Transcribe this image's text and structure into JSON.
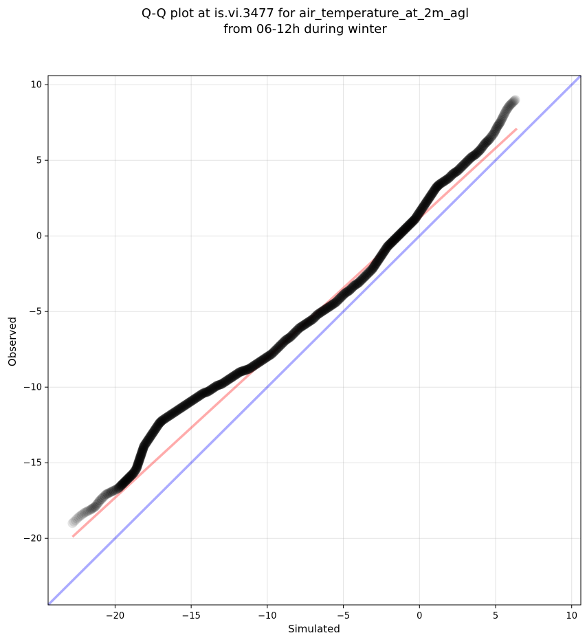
{
  "chart_data": {
    "type": "scatter",
    "title_line1": "Q-Q plot at is.vi.3477 for air_temperature_at_2m_agl",
    "title_line2": "from 06-12h during winter",
    "xlabel": "Simulated",
    "ylabel": "Observed",
    "xlim": [
      -24.4,
      10.6
    ],
    "ylim": [
      -24.4,
      10.6
    ],
    "xticks": [
      -20,
      -15,
      -10,
      -5,
      0,
      5,
      10
    ],
    "yticks": [
      -20,
      -15,
      -10,
      -5,
      0,
      5,
      10
    ],
    "xtick_labels": [
      "−20",
      "−15",
      "−10",
      "−5",
      "0",
      "5",
      "10"
    ],
    "ytick_labels": [
      "−20",
      "−15",
      "−10",
      "−5",
      "0",
      "5",
      "10"
    ],
    "grid": true,
    "fit_line": {
      "color": "#ff0000",
      "x": [
        -22.8,
        6.4
      ],
      "y": [
        -19.9,
        7.1
      ]
    },
    "identity_line": {
      "color": "#0000ff",
      "x": [
        -24.4,
        10.6
      ],
      "y": [
        -24.4,
        10.6
      ]
    },
    "points_color": "#000000",
    "points": {
      "x": [
        -22.8,
        -22.4,
        -22.0,
        -21.6,
        -21.3,
        -21.0,
        -20.6,
        -20.2,
        -19.8,
        -19.6,
        -19.4,
        -19.2,
        -19.0,
        -18.8,
        -18.6,
        -18.5,
        -18.4,
        -18.3,
        -18.2,
        -18.1,
        -17.9,
        -17.7,
        -17.5,
        -17.3,
        -17.1,
        -16.9,
        -16.6,
        -16.3,
        -16.0,
        -15.7,
        -15.4,
        -15.1,
        -14.8,
        -14.5,
        -14.2,
        -13.9,
        -13.6,
        -13.3,
        -13.0,
        -12.7,
        -12.4,
        -12.1,
        -11.8,
        -11.5,
        -11.2,
        -10.9,
        -10.6,
        -10.3,
        -10.0,
        -9.7,
        -9.4,
        -9.1,
        -8.8,
        -8.5,
        -8.2,
        -7.9,
        -7.6,
        -7.3,
        -7.0,
        -6.7,
        -6.4,
        -6.1,
        -5.8,
        -5.5,
        -5.2,
        -4.9,
        -4.6,
        -4.3,
        -4.0,
        -3.7,
        -3.4,
        -3.1,
        -2.9,
        -2.7,
        -2.5,
        -2.3,
        -2.1,
        -1.9,
        -1.7,
        -1.5,
        -1.3,
        -1.1,
        -0.9,
        -0.7,
        -0.5,
        -0.3,
        -0.1,
        0.1,
        0.3,
        0.5,
        0.7,
        0.9,
        1.1,
        1.3,
        1.6,
        1.9,
        2.2,
        2.5,
        2.8,
        3.1,
        3.4,
        3.7,
        4.0,
        4.3,
        4.6,
        4.9,
        5.1,
        5.3,
        5.5,
        5.7,
        5.9,
        6.1,
        6.3
      ],
      "y": [
        -19.0,
        -18.6,
        -18.3,
        -18.1,
        -17.9,
        -17.5,
        -17.1,
        -16.9,
        -16.7,
        -16.5,
        -16.3,
        -16.1,
        -15.9,
        -15.7,
        -15.4,
        -15.1,
        -14.8,
        -14.5,
        -14.2,
        -13.9,
        -13.6,
        -13.3,
        -13.0,
        -12.7,
        -12.4,
        -12.2,
        -12.0,
        -11.8,
        -11.6,
        -11.4,
        -11.2,
        -11.0,
        -10.8,
        -10.6,
        -10.4,
        -10.3,
        -10.1,
        -9.9,
        -9.8,
        -9.6,
        -9.4,
        -9.2,
        -9.0,
        -8.9,
        -8.8,
        -8.6,
        -8.4,
        -8.2,
        -8.0,
        -7.8,
        -7.5,
        -7.2,
        -6.9,
        -6.7,
        -6.4,
        -6.1,
        -5.9,
        -5.7,
        -5.5,
        -5.2,
        -5.0,
        -4.8,
        -4.6,
        -4.4,
        -4.1,
        -3.8,
        -3.6,
        -3.3,
        -3.1,
        -2.8,
        -2.5,
        -2.2,
        -1.9,
        -1.6,
        -1.3,
        -1.0,
        -0.7,
        -0.5,
        -0.3,
        -0.1,
        0.1,
        0.3,
        0.5,
        0.7,
        0.9,
        1.1,
        1.4,
        1.7,
        2.0,
        2.3,
        2.6,
        2.9,
        3.2,
        3.4,
        3.6,
        3.8,
        4.1,
        4.3,
        4.6,
        4.9,
        5.2,
        5.4,
        5.7,
        6.1,
        6.4,
        6.8,
        7.2,
        7.5,
        7.9,
        8.3,
        8.6,
        8.8,
        9.0
      ]
    }
  }
}
